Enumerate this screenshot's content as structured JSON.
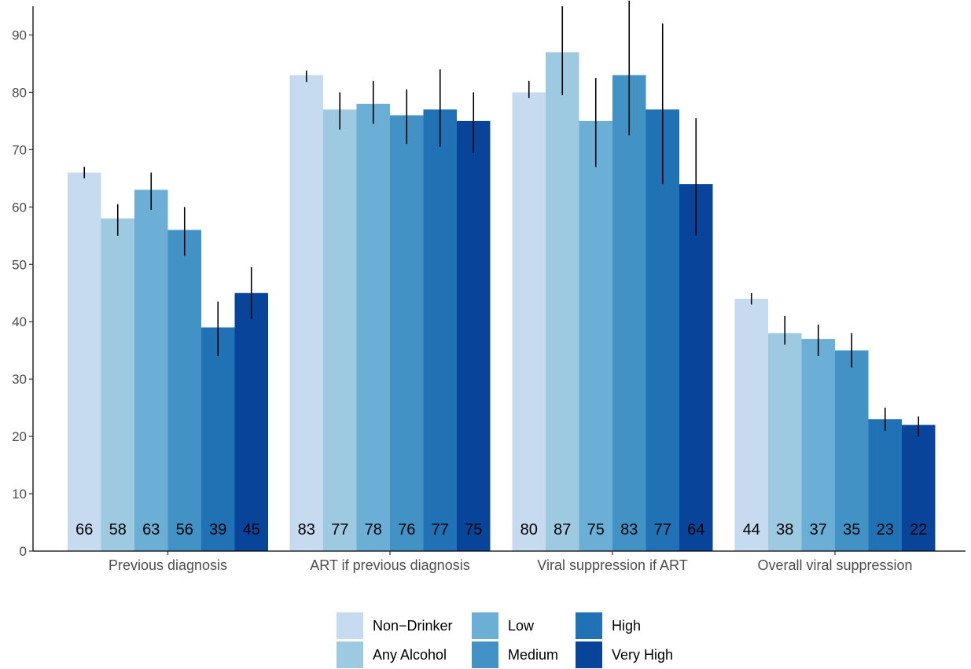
{
  "chart_data": {
    "type": "bar",
    "categories": [
      "Previous diagnosis",
      "ART if previous diagnosis",
      "Viral suppression if ART",
      "Overall viral suppression"
    ],
    "ylim": [
      0,
      95
    ],
    "yticks": [
      0,
      10,
      20,
      30,
      40,
      50,
      60,
      70,
      80,
      90
    ],
    "grid": false,
    "legend_position": "bottom",
    "series": [
      {
        "name": "Non−Drinker",
        "color": "#c6dbef",
        "values": [
          66,
          83,
          80,
          44
        ],
        "err_low": [
          65,
          81.8,
          79,
          43
        ],
        "err_high": [
          67,
          83.8,
          82,
          45
        ]
      },
      {
        "name": "Any Alcohol",
        "color": "#9ecae1",
        "values": [
          58,
          77,
          87,
          38
        ],
        "err_low": [
          55,
          73.5,
          79.5,
          36
        ],
        "err_high": [
          60.5,
          80,
          95,
          41
        ]
      },
      {
        "name": "Low",
        "color": "#6baed6",
        "values": [
          63,
          78,
          75,
          37
        ],
        "err_low": [
          59.5,
          74.5,
          67,
          34
        ],
        "err_high": [
          66,
          82,
          82.5,
          39.5
        ]
      },
      {
        "name": "Medium",
        "color": "#4292c6",
        "values": [
          56,
          76,
          83,
          35
        ],
        "err_low": [
          51.5,
          71,
          72.5,
          32
        ],
        "err_high": [
          60,
          80.5,
          96,
          38
        ]
      },
      {
        "name": "High",
        "color": "#2171b5",
        "values": [
          39,
          77,
          77,
          23
        ],
        "err_low": [
          34,
          70.5,
          64,
          21
        ],
        "err_high": [
          43.5,
          84,
          92,
          25
        ]
      },
      {
        "name": "Very High",
        "color": "#08459a",
        "values": [
          45,
          75,
          64,
          22
        ],
        "err_low": [
          40.5,
          69.5,
          55,
          20
        ],
        "err_high": [
          49.5,
          80,
          75.5,
          23.5
        ]
      }
    ]
  }
}
